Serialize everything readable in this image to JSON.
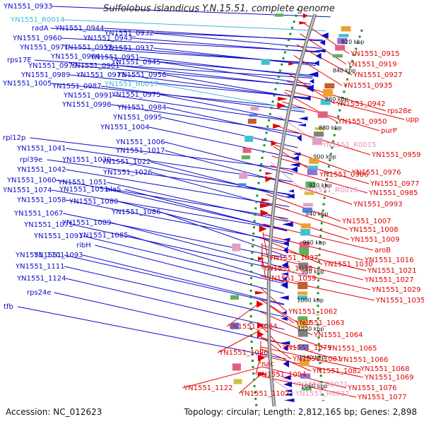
{
  "title": "Sulfolobus islandicus Y.N.15.51, complete genome",
  "accession": "Accession: NC_012623",
  "summary": "Topology: circular; Length: 2,812,165 bp; Genes: 2,898",
  "colors": {
    "forward": "#0a0ac8",
    "reverse": "#e00000",
    "rna_forward": "#40b8d8",
    "rna_reverse": "#e890c0",
    "backbone": "#9a9a9a",
    "dots": "#2a8a2a"
  },
  "kbp_ticks": [
    "820 kbp",
    "840 kbp",
    "860 kbp",
    "880 kbp",
    "900 kbp",
    "920 kbp",
    "940 kbp",
    "960 kbp",
    "980 kbp",
    "1000 kbp",
    "1020 kbp",
    "1040 kbp",
    "1060 kbp"
  ],
  "forward_labels": [
    "YN1551_0933",
    "YN1551_R0014",
    "radA",
    "YN1551_0944",
    "YN1551_0960",
    "YN1551_0943",
    "YN1551_0932",
    "YN1551_0971",
    "YN1551_0952",
    "YN1551_0937",
    "rps17E",
    "YN1551_0964",
    "YN1551_0951",
    "YN1551_0979",
    "YN1551_0961",
    "YN1551_0945",
    "YN1551_0989",
    "YN1551_0973",
    "YN1551_0956",
    "YN1551_1005",
    "YN1551_0987",
    "YN1551_R0017",
    "YN1551_0991",
    "YN1551_0975",
    "YN1551_0998",
    "YN1551_0984",
    "YN1551_0995",
    "YN1551_1004",
    "rpl12p",
    "YN1551_1006",
    "YN1551_1041",
    "YN1551_1017",
    "rpl39e",
    "YN1551_1039",
    "YN1551_1022",
    "YN1551_1042",
    "YN1551_1026",
    "YN1551_1060",
    "YN1551_1051",
    "YN1551_1074",
    "YN1551_1051",
    "alaS",
    "YN1551_1058",
    "YN1551_1080",
    "YN1551_1086",
    "YN1551_1067",
    "YN1551_1089",
    "YN1551_1075",
    "YN1551_1085",
    "YN1551_1091",
    "ribH",
    "YN1551_1093",
    "YN1551_1101",
    "YN1551_1111",
    "YN1551_1124",
    "rps24e",
    "tfb"
  ],
  "reverse_labels": [
    "YN1551_0915",
    "YN1551_0919",
    "YN1551_0927",
    "YN1551_0935",
    "YN1551_0942",
    "rps28e",
    "upp",
    "YN1551_0950",
    "purP",
    "YN1551_R0015",
    "YN1551_0959",
    "YN1551_0986",
    "YN1551_0976",
    "YN1551_R0018",
    "YN1551_0977",
    "YN1551_0985",
    "YN1551_0993",
    "YN1551_1007",
    "YN1551_1008",
    "YN1551_1009",
    "aroB",
    "YN1551_1037",
    "YN1551_1030",
    "YN1551_1016",
    "YN1551_1038",
    "YN1551_1021",
    "YN1551_1059",
    "YN1551_1027",
    "YN1551_1029",
    "YN1551_1035",
    "YN1551_1062",
    "YN1551_1063",
    "YN1551_1084",
    "folE",
    "YN1551_1064",
    "YN1551_1079",
    "YN1551_1065",
    "nac",
    "YN1551_1081",
    "YN1551_1096",
    "YN1551_1066",
    "YN1551_1082",
    "YN1551_1068",
    "YN1551_1094",
    "YN1551_1069",
    "YN1551_R0021",
    "YN1551_1076",
    "YN1551_1122",
    "YN1551_1102",
    "YN1551_R0022",
    "YN1551_1077"
  ]
}
